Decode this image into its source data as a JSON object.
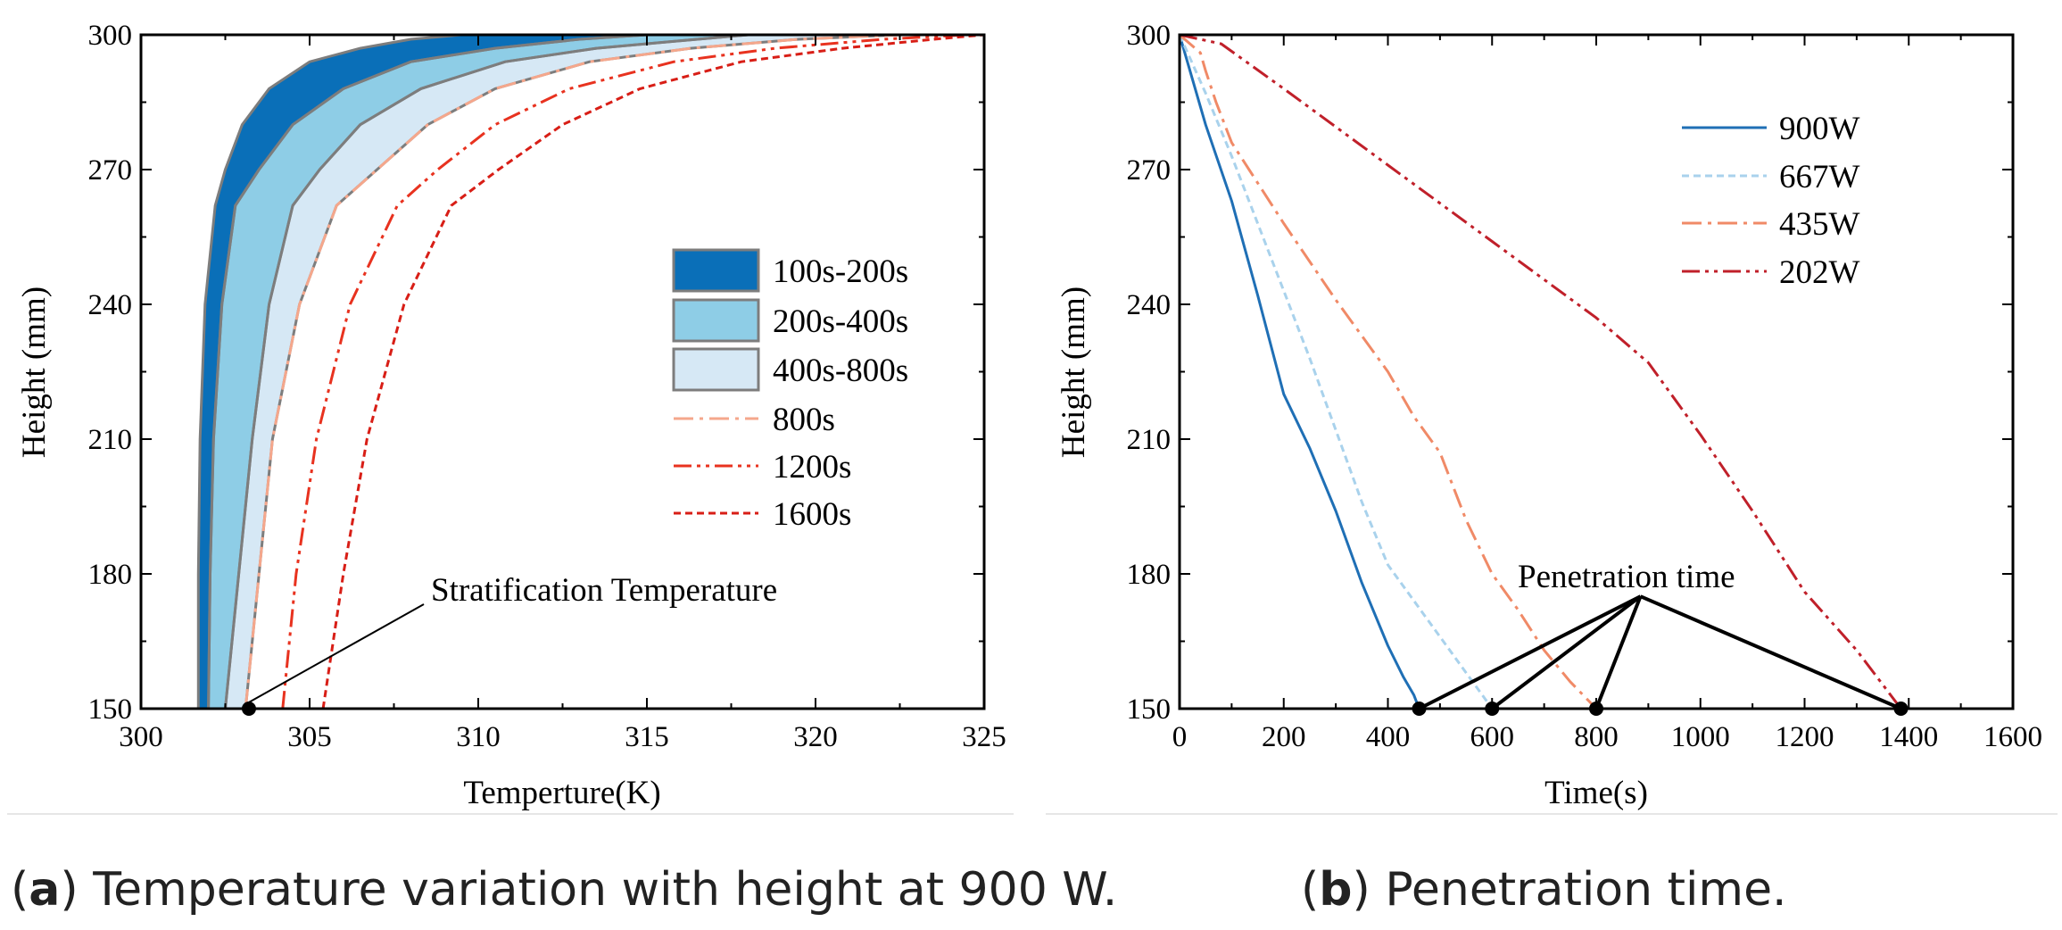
{
  "captions": {
    "a": {
      "label": "a",
      "text": "Temperature variation with height at 900 W."
    },
    "b": {
      "label": "b",
      "text": "Penetration time."
    }
  },
  "chart_data": [
    {
      "type": "area",
      "panel": "a",
      "xlabel": "Temperture(K)",
      "ylabel": "Height (mm)",
      "xlim": [
        300,
        325
      ],
      "ylim": [
        150,
        300
      ],
      "xticks": [
        300,
        305,
        310,
        315,
        320,
        325
      ],
      "yticks": [
        150,
        180,
        210,
        240,
        270,
        300
      ],
      "legend_position": "center-right",
      "colors": {
        "band1": "#0a6fb8",
        "band2": "#8ecde6",
        "band3": "#d6e8f5",
        "band_edge": "#7d7d7d",
        "c800": "#f5a78c",
        "c1200": "#e8321f",
        "c1600": "#d81e16"
      },
      "bands": [
        {
          "name": "100s-200s",
          "color": "#0a6fb8",
          "lower": {
            "x": [
              301.7,
              301.7,
              301.75,
              301.9,
              302.2,
              302.5,
              303.0,
              303.8,
              305.0,
              306.5,
              308.0,
              309.5
            ],
            "y": [
              150,
              180,
              210,
              240,
              262,
              270,
              280,
              288,
              294,
              297,
              299,
              300
            ]
          },
          "upper": {
            "x": [
              302.0,
              302.05,
              302.15,
              302.4,
              302.8,
              303.5,
              304.5,
              306.0,
              308.0,
              310.5,
              313.0,
              315.0
            ],
            "y": [
              150,
              180,
              210,
              240,
              262,
              270,
              280,
              288,
              294,
              297,
              299,
              300
            ]
          }
        },
        {
          "name": "200s-400s",
          "color": "#8ecde6",
          "lower": {
            "x": [
              302.0,
              302.05,
              302.15,
              302.4,
              302.8,
              303.5,
              304.5,
              306.0,
              308.0,
              310.5,
              313.0,
              315.0
            ],
            "y": [
              150,
              180,
              210,
              240,
              262,
              270,
              280,
              288,
              294,
              297,
              299,
              300
            ]
          },
          "upper": {
            "x": [
              302.5,
              302.9,
              303.3,
              303.8,
              304.5,
              305.3,
              306.5,
              308.3,
              310.8,
              313.5,
              316.5,
              318.0
            ],
            "y": [
              150,
              180,
              210,
              240,
              262,
              270,
              280,
              288,
              294,
              297,
              299,
              300
            ]
          }
        },
        {
          "name": "400s-800s",
          "color": "#d6e8f5",
          "lower": {
            "x": [
              302.5,
              302.9,
              303.3,
              303.8,
              304.5,
              305.3,
              306.5,
              308.3,
              310.8,
              313.5,
              316.5,
              318.0
            ],
            "y": [
              150,
              180,
              210,
              240,
              262,
              270,
              280,
              288,
              294,
              297,
              299,
              300
            ]
          },
          "upper": {
            "x": [
              303.1,
              303.5,
              303.9,
              304.7,
              305.8,
              307.0,
              308.5,
              310.5,
              313.3,
              316.3,
              319.5,
              322.5
            ],
            "y": [
              150,
              180,
              210,
              240,
              262,
              270,
              280,
              288,
              294,
              297,
              299,
              300
            ]
          }
        }
      ],
      "series": [
        {
          "name": "800s",
          "color": "#f5a78c",
          "dash": "dashdot",
          "x": [
            303.1,
            303.5,
            303.9,
            304.7,
            305.8,
            307.0,
            308.5,
            310.5,
            313.3,
            316.3,
            319.5,
            322.5
          ],
          "y": [
            150,
            180,
            210,
            240,
            262,
            270,
            280,
            288,
            294,
            297,
            299,
            300
          ]
        },
        {
          "name": "1200s",
          "color": "#e8321f",
          "dash": "dashdotdot",
          "x": [
            304.2,
            304.6,
            305.2,
            306.2,
            307.6,
            308.8,
            310.5,
            312.7,
            315.8,
            318.8,
            322.0,
            324.5
          ],
          "y": [
            150,
            180,
            210,
            240,
            262,
            270,
            280,
            288,
            294,
            297,
            299,
            300
          ]
        },
        {
          "name": "1600s",
          "color": "#d81e16",
          "dash": "dash",
          "x": [
            305.4,
            306.0,
            306.7,
            307.8,
            309.2,
            310.6,
            312.5,
            314.8,
            317.8,
            320.8,
            323.5,
            325.0
          ],
          "y": [
            150,
            180,
            210,
            240,
            262,
            270,
            280,
            288,
            294,
            297,
            299,
            300
          ]
        }
      ],
      "annotation": {
        "text": "Stratification Temperature",
        "point": [
          303.2,
          150
        ]
      }
    },
    {
      "type": "line",
      "panel": "b",
      "xlabel": "Time(s)",
      "ylabel": "Height (mm)",
      "xlim": [
        0,
        1600
      ],
      "ylim": [
        150,
        300
      ],
      "xticks": [
        0,
        200,
        400,
        600,
        800,
        1000,
        1200,
        1400,
        1600
      ],
      "yticks": [
        150,
        180,
        210,
        240,
        270,
        300
      ],
      "legend_position": "top-right",
      "series": [
        {
          "name": "900W",
          "color": "#1f6fb5",
          "dash": "solid",
          "x": [
            0,
            25,
            50,
            100,
            150,
            200,
            250,
            300,
            350,
            400,
            430,
            450,
            460
          ],
          "y": [
            300,
            290,
            280,
            263,
            242,
            220,
            208,
            194,
            178,
            164,
            157,
            153,
            150
          ]
        },
        {
          "name": "667W",
          "color": "#a9d2ec",
          "dash": "dash",
          "x": [
            0,
            50,
            100,
            150,
            200,
            250,
            300,
            350,
            400,
            450,
            500,
            550,
            600
          ],
          "y": [
            300,
            287,
            273,
            258,
            243,
            228,
            212,
            196,
            182,
            174,
            166,
            158,
            150
          ]
        },
        {
          "name": "435W",
          "color": "#f08a67",
          "dash": "dashdot",
          "x": [
            0,
            40,
            50,
            70,
            100,
            200,
            300,
            400,
            450,
            500,
            550,
            600,
            650,
            700,
            750,
            800
          ],
          "y": [
            300,
            296,
            292,
            285,
            276,
            258,
            241,
            225,
            215,
            207,
            192,
            180,
            172,
            163,
            156,
            150
          ]
        },
        {
          "name": "202W",
          "color": "#c0202a",
          "dash": "dashdotdot",
          "x": [
            0,
            80,
            200,
            400,
            600,
            800,
            900,
            1000,
            1100,
            1200,
            1300,
            1385
          ],
          "y": [
            300,
            298,
            288,
            271,
            254,
            237,
            227,
            211,
            194,
            176,
            163,
            150
          ]
        }
      ],
      "points": [
        {
          "x": 460,
          "y": 150
        },
        {
          "x": 600,
          "y": 150
        },
        {
          "x": 800,
          "y": 150
        },
        {
          "x": 1385,
          "y": 150
        }
      ],
      "annotation": {
        "text": "Penetration time",
        "apex": [
          885,
          175
        ]
      }
    }
  ]
}
